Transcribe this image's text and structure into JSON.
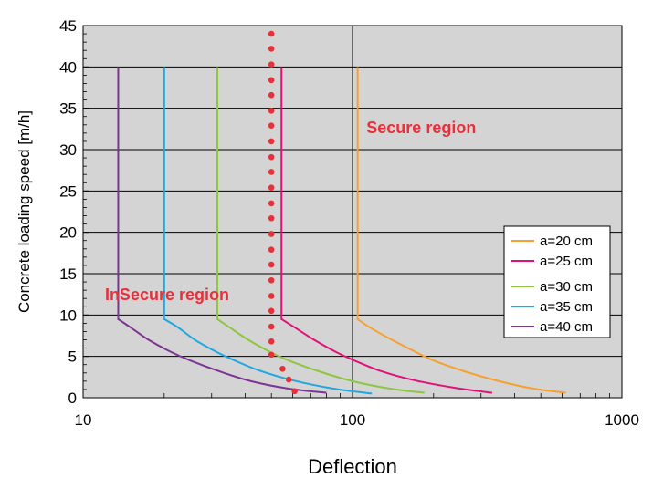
{
  "chart_data": {
    "type": "line",
    "title": "",
    "xlabel": "Deflection",
    "ylabel": "Concrete loading speed [m/h]",
    "x_scale": "log",
    "xlim": [
      10,
      1000
    ],
    "ylim": [
      0,
      45
    ],
    "x_ticks": [
      10,
      100,
      1000
    ],
    "y_ticks": [
      0,
      5,
      10,
      15,
      20,
      25,
      30,
      35,
      40,
      45
    ],
    "grid": true,
    "legend_position": "right",
    "plot_background": "#d4d4d4",
    "annotations": [
      {
        "text": "Secure region",
        "x": 180,
        "y": 32,
        "color": "#e8303a"
      },
      {
        "text": "InSecure region",
        "x": 20.5,
        "y": 11.8,
        "color": "#e8303a"
      }
    ],
    "series": [
      {
        "name": "a=20 cm",
        "color": "#f7a030",
        "x": [
          104.5,
          104.5,
          116,
          140,
          170,
          200,
          260,
          350,
          470,
          620
        ],
        "y": [
          40,
          9.5,
          8.5,
          7,
          5.6,
          4.5,
          3.2,
          2,
          1.1,
          0.6
        ]
      },
      {
        "name": "a=25 cm",
        "color": "#e0127a",
        "x": [
          54.5,
          54.5,
          61,
          72,
          86,
          100,
          128,
          170,
          240,
          330
        ],
        "y": [
          40,
          9.5,
          8.5,
          7,
          5.6,
          4.6,
          3.2,
          2.1,
          1.2,
          0.6
        ]
      },
      {
        "name": "a=30 cm",
        "color": "#8dc63f",
        "x": [
          31.5,
          31.5,
          35,
          41,
          49,
          58,
          75,
          100,
          138,
          185
        ],
        "y": [
          40,
          9.5,
          8.5,
          7,
          5.6,
          4.5,
          3.2,
          2,
          1.1,
          0.6
        ]
      },
      {
        "name": "a=35 cm",
        "color": "#1ea7e0",
        "x": [
          20,
          20,
          22.5,
          26,
          31,
          36,
          45,
          60,
          85,
          118
        ],
        "y": [
          40,
          9.5,
          8.5,
          7,
          5.6,
          4.6,
          3.3,
          2.1,
          1.1,
          0.5
        ]
      },
      {
        "name": "a=40 cm",
        "color": "#7c3593",
        "x": [
          13.5,
          13.5,
          15,
          17.5,
          21,
          25,
          32,
          42,
          58,
          80
        ],
        "y": [
          40,
          9.5,
          8.5,
          7,
          5.6,
          4.5,
          3.2,
          2,
          1.1,
          0.6
        ]
      },
      {
        "name": "",
        "style": "dotted",
        "color": "#e8303a",
        "x": [
          50,
          50,
          50,
          50,
          50,
          50,
          50,
          50,
          50,
          50,
          50,
          50,
          50,
          50,
          50,
          50,
          50,
          50,
          50,
          50,
          50,
          50,
          55,
          58,
          61
        ],
        "y": [
          44,
          42.2,
          40.3,
          38.4,
          36.6,
          34.7,
          32.9,
          31,
          29.1,
          27.3,
          25.4,
          23.5,
          21.7,
          19.8,
          17.9,
          16.1,
          14.2,
          12.3,
          10.5,
          8.6,
          6.8,
          5.2,
          3.5,
          2.2,
          0.8
        ]
      }
    ]
  }
}
